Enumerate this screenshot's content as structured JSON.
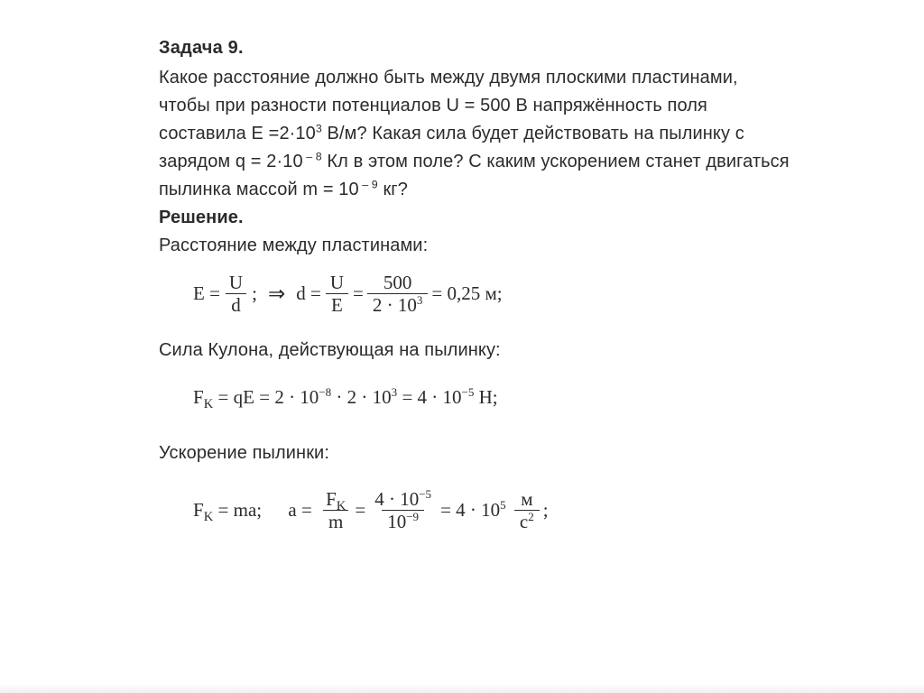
{
  "title": "Задача 9.",
  "problem": {
    "line1": "Какое расстояние должно быть между двумя плоскими пластинами,",
    "line2a": "чтобы при разности потенциалов U = ",
    "U": "500",
    "line2b": " В напряжённость поля",
    "line3a": "составила E =",
    "E_mantissa": "2·10",
    "E_exp": "3",
    "line3b": " В/м? Какая сила будет действовать на пылинку с",
    "line4a": "зарядом q = ",
    "q_mantissa": "2·10",
    "q_exp": " – 8",
    "line4b": " Кл в этом поле? С каким ускорением станет двигаться",
    "line5a": "пылинка массой m = ",
    "m_mantissa": "10",
    "m_exp": " – 9",
    "line5b": " кг?"
  },
  "solution_label": "Решение.",
  "step1_label": "Расстояние между пластинами:",
  "formula1": {
    "lhs_sym": "E",
    "eq": "=",
    "frac1_num": "U",
    "frac1_den": "d",
    "semi": ";",
    "arrow": "⇒",
    "sym_d": "d",
    "frac2_num": "U",
    "frac2_den": "E",
    "val_num": "500",
    "val_den_m": "2 · 10",
    "val_den_exp": "3",
    "result": "0,25 м;"
  },
  "step2_label": "Сила Кулона, действующая на пылинку:",
  "formula2": {
    "lhs": "F",
    "lhs_sub": "K",
    "rhs_sym": "qE",
    "t1_m": "2 · 10",
    "t1_e": "−8",
    "dot": "·",
    "t2_m": "2 · 10",
    "t2_e": "3",
    "res_m": "4 · 10",
    "res_e": "−5",
    "unit": "H;"
  },
  "step3_label": "Ускорение пылинки:",
  "formula3": {
    "lhs": "F",
    "lhs_sub": "K",
    "eq_ma": "ma;",
    "sym_a": "a",
    "frac_num": "F",
    "frac_num_sub": "K",
    "frac_den": "m",
    "val_num_m": "4 · 10",
    "val_num_e": "−5",
    "val_den_m": "10",
    "val_den_e": "−9",
    "res_m": "4 · 10",
    "res_e": "5",
    "unit_num": "м",
    "unit_den": "с",
    "unit_den_exp": "2",
    "semi": ";"
  },
  "colors": {
    "text": "#2b2b2b",
    "background": "#ffffff",
    "hr": "#2b2b2b"
  }
}
